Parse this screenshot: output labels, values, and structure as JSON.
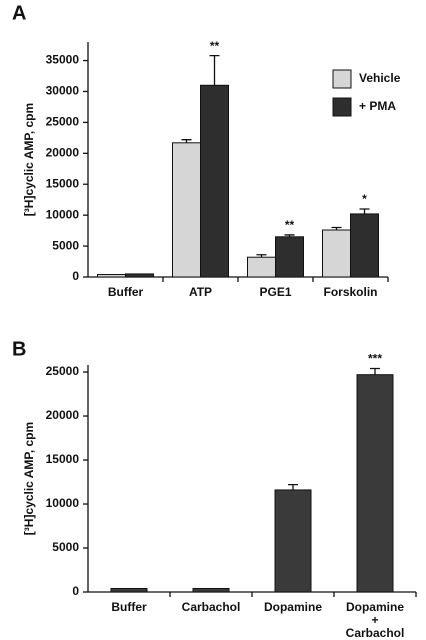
{
  "chart_data": [
    {
      "type": "bar",
      "panel_label": "A",
      "y_label": "[³H]cyclic AMP, cpm",
      "categories": [
        "Buffer",
        "ATP",
        "PGE1",
        "Forskolin"
      ],
      "series": [
        {
          "name": "Vehicle",
          "color": "#d6d6d6",
          "values": [
            400,
            21700,
            3200,
            7600
          ],
          "errors": [
            0,
            500,
            400,
            400
          ]
        },
        {
          "name": "+ PMA",
          "color": "#2e2e2e",
          "values": [
            500,
            31000,
            6500,
            10200
          ],
          "errors": [
            0,
            4800,
            300,
            800
          ]
        }
      ],
      "annotations": [
        null,
        "**",
        "**",
        "*"
      ],
      "ylim": [
        0,
        38000
      ],
      "yticks": [
        0,
        5000,
        10000,
        15000,
        20000,
        25000,
        30000,
        35000
      ],
      "legend": "upper right"
    },
    {
      "type": "bar",
      "panel_label": "B",
      "y_label": "[³H]cyclic AMP, cpm",
      "categories": [
        "Buffer",
        "Carbachol",
        "Dopamine",
        [
          "Dopamine",
          "+",
          "Carbachol"
        ]
      ],
      "series": [
        {
          "name": null,
          "color": "#3a3a3a",
          "values": [
            400,
            400,
            11600,
            24700
          ],
          "errors": [
            0,
            0,
            600,
            700
          ]
        }
      ],
      "annotations": [
        null,
        null,
        null,
        "***"
      ],
      "ylim": [
        0,
        25800
      ],
      "yticks": [
        0,
        5000,
        10000,
        15000,
        20000,
        25000
      ]
    }
  ]
}
